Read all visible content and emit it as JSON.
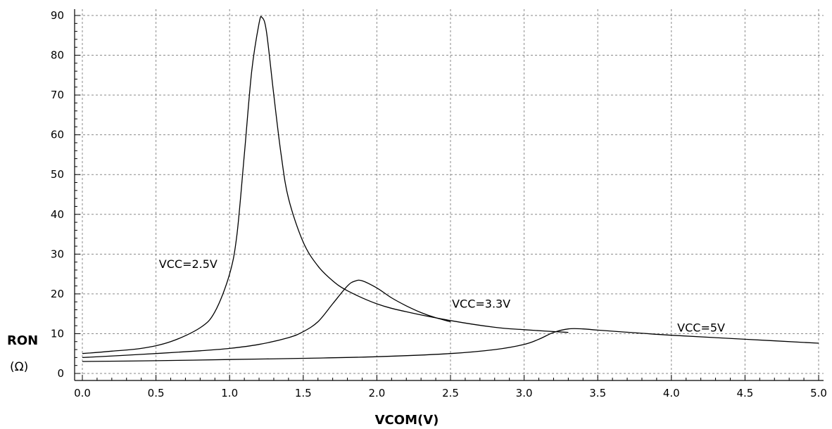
{
  "chart_data": {
    "type": "line",
    "xlabel": "VCOM(V)",
    "ylabel": "RON",
    "ylabel_unit": "(Ω)",
    "xlim": [
      0,
      5
    ],
    "ylim": [
      0,
      90
    ],
    "grid": true,
    "x_ticks": [
      "0.0",
      "0.5",
      "1.0",
      "1.5",
      "2.0",
      "2.5",
      "3.0",
      "3.5",
      "4.0",
      "4.5",
      "5.0"
    ],
    "y_ticks": [
      "0",
      "10",
      "20",
      "30",
      "40",
      "50",
      "60",
      "70",
      "80",
      "90"
    ],
    "series": [
      {
        "name": "VCC=2.5V",
        "x": [
          0,
          0.2,
          0.4,
          0.6,
          0.8,
          0.9,
          1.0,
          1.05,
          1.1,
          1.15,
          1.2,
          1.22,
          1.25,
          1.3,
          1.35,
          1.4,
          1.5,
          1.6,
          1.7,
          1.8,
          2.0,
          2.2,
          2.5,
          2.8,
          3.0,
          3.3
        ],
        "y": [
          5,
          5.6,
          6.3,
          8,
          11.5,
          15.5,
          25,
          35,
          55,
          76,
          88,
          89.5,
          86,
          70,
          55,
          44,
          33,
          27,
          23.3,
          20.8,
          17.5,
          15.5,
          13.3,
          11.6,
          11,
          10.3
        ]
      },
      {
        "name": "VCC=3.3V",
        "x": [
          0,
          0.4,
          0.8,
          1.0,
          1.2,
          1.4,
          1.5,
          1.6,
          1.7,
          1.8,
          1.85,
          1.9,
          2.0,
          2.1,
          2.2,
          2.3,
          2.4,
          2.5
        ],
        "y": [
          4,
          4.8,
          5.7,
          6.3,
          7.3,
          9,
          10.5,
          13,
          17.5,
          22,
          23.2,
          23.3,
          21.5,
          19,
          17,
          15.3,
          14,
          13
        ]
      },
      {
        "name": "VCC=5V",
        "x": [
          0,
          0.5,
          1.0,
          1.5,
          2.0,
          2.5,
          2.8,
          3.0,
          3.1,
          3.2,
          3.3,
          3.4,
          3.5,
          3.8,
          4.0,
          4.5,
          5.0
        ],
        "y": [
          3,
          3.2,
          3.5,
          3.8,
          4.2,
          5.0,
          6.0,
          7.3,
          8.6,
          10.3,
          11.2,
          11.2,
          10.9,
          10.1,
          9.6,
          8.6,
          7.6
        ]
      }
    ],
    "annotations": [
      {
        "text": "VCC=2.5V",
        "x": 0.52,
        "y": 26.5
      },
      {
        "text": "VCC=3.3V",
        "x": 2.51,
        "y": 16.5
      },
      {
        "text": "VCC=5V",
        "x": 4.04,
        "y": 10.5
      }
    ]
  }
}
